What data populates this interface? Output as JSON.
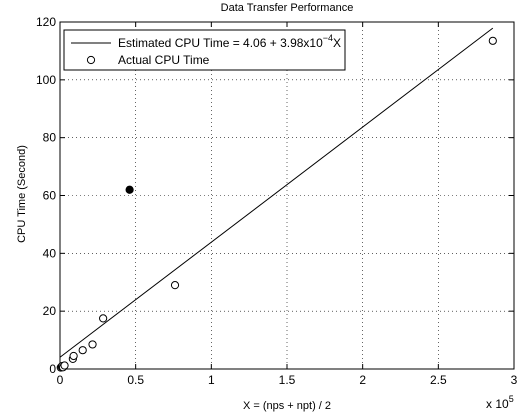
{
  "chart_data": {
    "type": "scatter",
    "title": "Data Transfer Performance",
    "xlabel": "X = (nps + npt) / 2",
    "ylabel": "CPU Time (Second)",
    "xlim": [
      0,
      3
    ],
    "ylim": [
      0,
      120
    ],
    "x_multiplier_label": "x 10",
    "x_multiplier_exponent": "5",
    "x_ticks": [
      "0",
      "0.5",
      "1",
      "1.5",
      "2",
      "2.5",
      "3"
    ],
    "y_ticks": [
      "0",
      "20",
      "40",
      "60",
      "80",
      "100",
      "120"
    ],
    "grid": true,
    "legend_position": "top-left",
    "series": [
      {
        "type": "line",
        "label_prefix": "Estimated CPU Time = 4.06 + 3.98x10",
        "label_exponent": "−4",
        "label_suffix": "X",
        "intercept": 4.06,
        "slope_per_1e5": 39.8,
        "x": [
          0,
          2.86
        ],
        "color": "#000000"
      },
      {
        "type": "scatter",
        "name": "Actual CPU Time",
        "marker": "open-circle",
        "x": [
          0.005,
          0.01,
          0.015,
          0.02,
          0.03,
          0.085,
          0.09,
          0.15,
          0.215,
          0.285,
          0.76,
          2.86
        ],
        "y": [
          0.5,
          0.8,
          1.0,
          0.6,
          1.2,
          3.5,
          4.5,
          6.5,
          8.5,
          17.5,
          29.0,
          113.5
        ],
        "color": "#000000"
      },
      {
        "type": "scatter",
        "marker": "filled-circle",
        "x": [
          0.46
        ],
        "y": [
          62.0
        ],
        "color": "#000000"
      }
    ]
  }
}
